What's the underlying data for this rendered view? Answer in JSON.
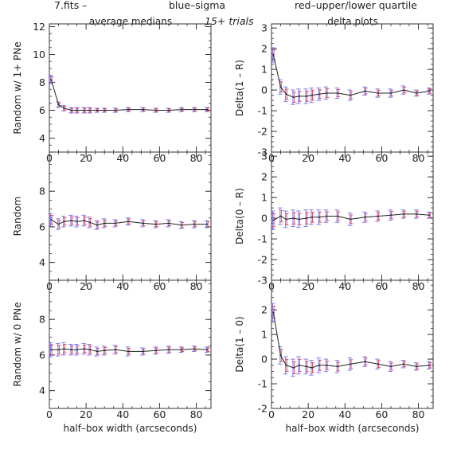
{
  "header": {
    "file_label": "7.fits   –",
    "blue_legend": "blue–sigma",
    "red_legend": "red–upper/lower quartile",
    "trials": "15+ trials",
    "left_title": "average medians",
    "right_title": "delta plots"
  },
  "colors": {
    "axis": "#333333",
    "line": "#222222",
    "sigma_bar": "#7f7ff0",
    "quartile_bar": "#d64b6e",
    "blue_text": "#4b4bd6",
    "red_text": "#e0405a"
  },
  "chart_data": [
    {
      "type": "line",
      "ylabel": "Random w/ 1+ PNe",
      "xlabel": "",
      "xlim": [
        0,
        88
      ],
      "ylim": [
        3,
        12.2
      ],
      "yticks": [
        4,
        6,
        8,
        10,
        12
      ],
      "xticks": [
        0,
        20,
        40,
        60,
        80
      ],
      "x": [
        1,
        5,
        8,
        12,
        15,
        19,
        22,
        26,
        30,
        36,
        43,
        51,
        58,
        65,
        72,
        79,
        86
      ],
      "y": [
        8.2,
        6.4,
        6.15,
        6.0,
        6.0,
        6.0,
        6.0,
        6.0,
        6.0,
        6.0,
        6.05,
        6.05,
        6.0,
        6.0,
        6.05,
        6.05,
        6.05
      ],
      "err": [
        0.3,
        0.2,
        0.2,
        0.2,
        0.2,
        0.2,
        0.2,
        0.15,
        0.15,
        0.15,
        0.15,
        0.15,
        0.15,
        0.15,
        0.15,
        0.15,
        0.15
      ]
    },
    {
      "type": "line",
      "ylabel": "Random",
      "xlabel": "",
      "xlim": [
        0,
        88
      ],
      "ylim": [
        3,
        10.2
      ],
      "yticks": [
        4,
        6,
        8
      ],
      "xticks": [
        0,
        20,
        40,
        60,
        80
      ],
      "x": [
        1,
        5,
        8,
        12,
        15,
        19,
        22,
        26,
        30,
        36,
        43,
        51,
        58,
        65,
        72,
        79,
        86
      ],
      "y": [
        6.4,
        6.15,
        6.3,
        6.35,
        6.3,
        6.35,
        6.25,
        6.1,
        6.2,
        6.2,
        6.3,
        6.2,
        6.15,
        6.2,
        6.1,
        6.15,
        6.15
      ],
      "err": [
        0.35,
        0.3,
        0.3,
        0.3,
        0.3,
        0.3,
        0.3,
        0.25,
        0.25,
        0.2,
        0.2,
        0.2,
        0.2,
        0.2,
        0.2,
        0.2,
        0.2
      ]
    },
    {
      "type": "line",
      "ylabel": "Random w/ 0 PNe",
      "xlabel": "half–box width (arcseconds)",
      "xlim": [
        0,
        88
      ],
      "ylim": [
        3,
        10.2
      ],
      "yticks": [
        4,
        6,
        8
      ],
      "xticks": [
        0,
        20,
        40,
        60,
        80
      ],
      "x": [
        1,
        5,
        8,
        12,
        15,
        19,
        22,
        26,
        30,
        36,
        43,
        51,
        58,
        65,
        72,
        79,
        86
      ],
      "y": [
        6.3,
        6.3,
        6.35,
        6.3,
        6.3,
        6.35,
        6.3,
        6.2,
        6.25,
        6.3,
        6.2,
        6.2,
        6.25,
        6.3,
        6.3,
        6.35,
        6.3
      ],
      "err": [
        0.4,
        0.35,
        0.35,
        0.3,
        0.3,
        0.3,
        0.3,
        0.25,
        0.25,
        0.25,
        0.25,
        0.2,
        0.2,
        0.2,
        0.15,
        0.15,
        0.15
      ]
    },
    {
      "type": "line",
      "ylabel": "Delta(1 – R)",
      "xlabel": "",
      "xlim": [
        0,
        88
      ],
      "ylim": [
        -3,
        3.2
      ],
      "yticks": [
        -3,
        -2,
        -1,
        0,
        1,
        2,
        3
      ],
      "xticks": [
        0,
        20,
        40,
        60,
        80
      ],
      "x": [
        1,
        5,
        8,
        12,
        15,
        19,
        22,
        26,
        30,
        36,
        43,
        51,
        58,
        65,
        72,
        79,
        86
      ],
      "y": [
        1.7,
        0.15,
        -0.2,
        -0.35,
        -0.3,
        -0.3,
        -0.25,
        -0.2,
        -0.15,
        -0.15,
        -0.25,
        -0.05,
        -0.15,
        -0.15,
        0.0,
        -0.15,
        -0.05
      ],
      "err": [
        0.35,
        0.35,
        0.35,
        0.35,
        0.35,
        0.35,
        0.35,
        0.3,
        0.3,
        0.25,
        0.25,
        0.2,
        0.2,
        0.2,
        0.2,
        0.15,
        0.15
      ]
    },
    {
      "type": "line",
      "ylabel": "Delta(0 – R)",
      "xlabel": "",
      "xlim": [
        0,
        88
      ],
      "ylim": [
        -3,
        3.2
      ],
      "yticks": [
        -3,
        -2,
        -1,
        0,
        1,
        2,
        3
      ],
      "xticks": [
        0,
        20,
        40,
        60,
        80
      ],
      "x": [
        1,
        5,
        8,
        12,
        15,
        19,
        22,
        26,
        30,
        36,
        43,
        51,
        58,
        65,
        72,
        79,
        86
      ],
      "y": [
        -0.1,
        0.1,
        -0.05,
        0.0,
        -0.05,
        0.0,
        0.05,
        0.05,
        0.1,
        0.1,
        -0.05,
        0.05,
        0.1,
        0.15,
        0.2,
        0.2,
        0.15
      ],
      "err": [
        0.45,
        0.4,
        0.4,
        0.4,
        0.4,
        0.4,
        0.35,
        0.35,
        0.3,
        0.3,
        0.3,
        0.25,
        0.25,
        0.25,
        0.2,
        0.2,
        0.15
      ]
    },
    {
      "type": "line",
      "ylabel": "Delta(1 – 0)",
      "xlabel": "half–box width (arcseconds)",
      "xlim": [
        0,
        88
      ],
      "ylim": [
        -2,
        3.2
      ],
      "yticks": [
        -2,
        -1,
        0,
        1,
        2
      ],
      "xticks": [
        0,
        20,
        40,
        60,
        80
      ],
      "x": [
        1,
        5,
        8,
        12,
        15,
        19,
        22,
        26,
        30,
        36,
        43,
        51,
        58,
        65,
        72,
        79,
        86
      ],
      "y": [
        1.9,
        0.15,
        -0.25,
        -0.35,
        -0.25,
        -0.3,
        -0.35,
        -0.25,
        -0.25,
        -0.3,
        -0.2,
        -0.1,
        -0.2,
        -0.3,
        -0.2,
        -0.3,
        -0.25
      ],
      "err": [
        0.35,
        0.35,
        0.35,
        0.35,
        0.35,
        0.3,
        0.3,
        0.3,
        0.25,
        0.25,
        0.25,
        0.2,
        0.2,
        0.2,
        0.15,
        0.15,
        0.15
      ]
    }
  ]
}
